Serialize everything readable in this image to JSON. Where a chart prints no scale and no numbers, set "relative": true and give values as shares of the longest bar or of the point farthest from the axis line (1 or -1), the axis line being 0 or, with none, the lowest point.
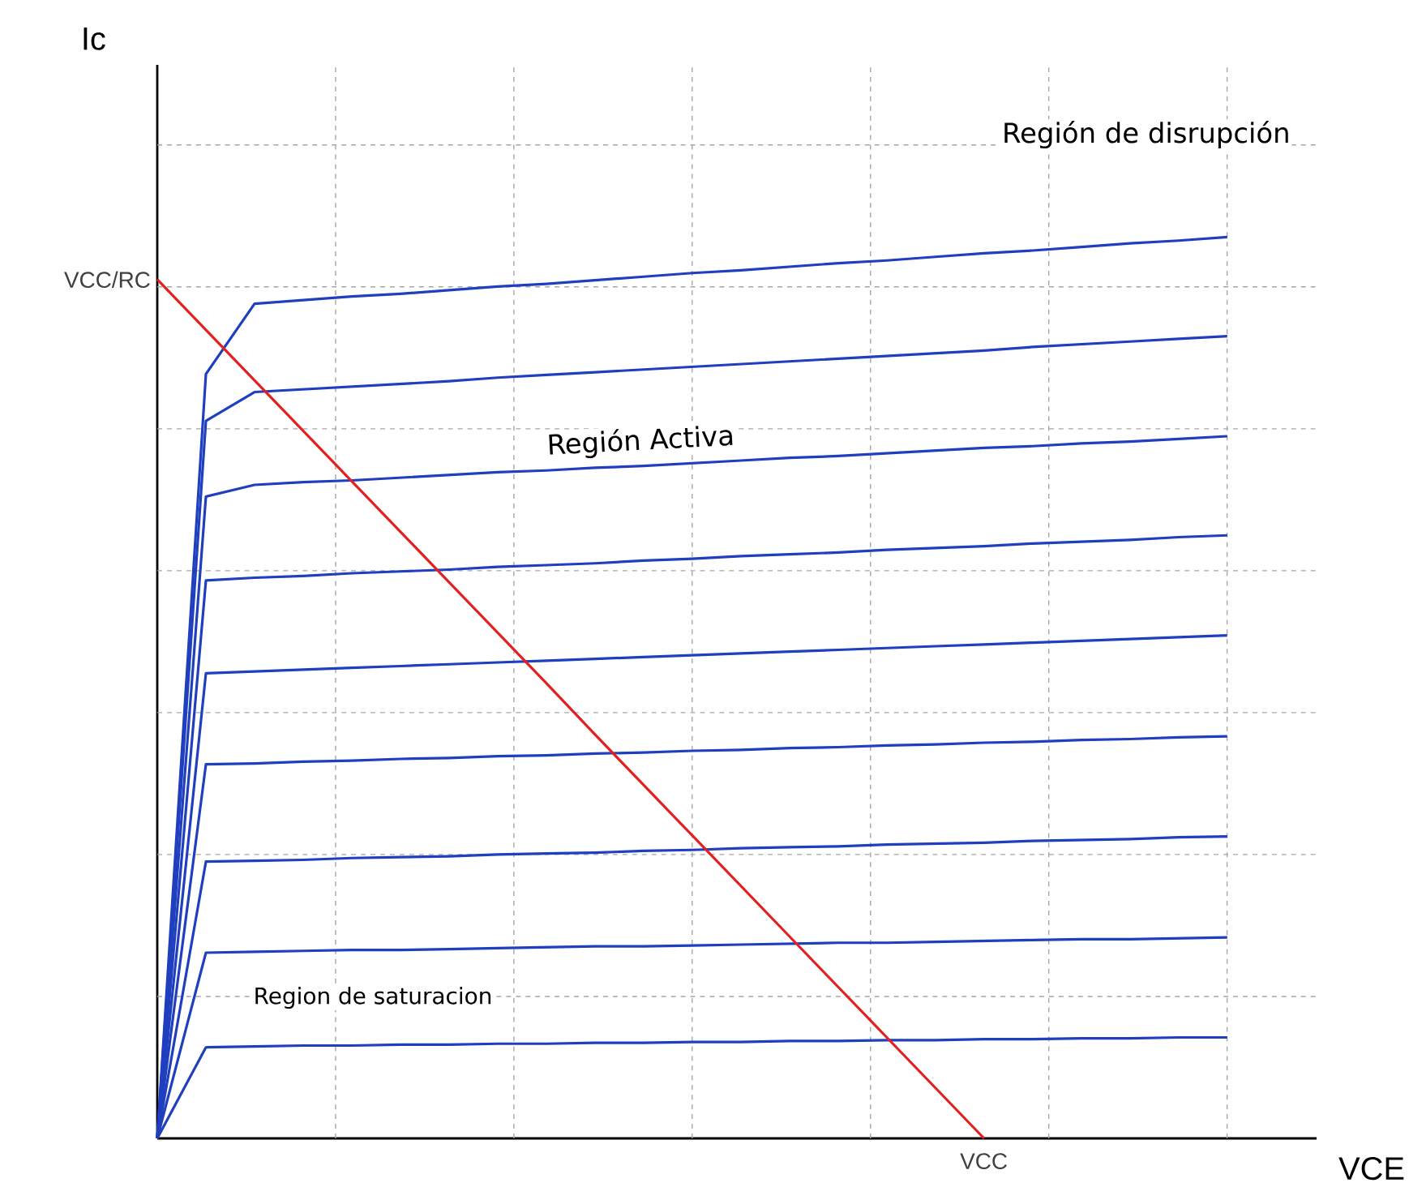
{
  "chart_data": {
    "type": "line",
    "relative": true,
    "xlabel": "VCE",
    "annotations": [
      "Región de disrupción",
      "Región Activa",
      "Region de saturacion",
      "VCC",
      "VCC/RC",
      "Ic"
    ],
    "grid": true,
    "line_style": "solid",
    "marker": "none",
    "categories": [
      null,
      null,
      null,
      null,
      null,
      null,
      null,
      null,
      null,
      null,
      null,
      null,
      null,
      null,
      null,
      null,
      null,
      null,
      null,
      null,
      null,
      null,
      null
    ],
    "series": [
      {
        "color": "#1f3fbf",
        "values": [
          0,
          0.848,
          0.926,
          0.93,
          0.934,
          0.937,
          0.941,
          0.945,
          0.948,
          0.952,
          0.956,
          0.96,
          0.963,
          0.967,
          0.971,
          0.974,
          0.978,
          0.982,
          0.985,
          0.989,
          0.993,
          0.996,
          1.0
        ]
      },
      {
        "color": "#1f3fbf",
        "values": [
          0,
          0.796,
          0.828,
          0.831,
          0.834,
          0.837,
          0.84,
          0.844,
          0.847,
          0.85,
          0.853,
          0.856,
          0.859,
          0.862,
          0.865,
          0.868,
          0.871,
          0.874,
          0.878,
          0.881,
          0.884,
          0.887,
          0.89
        ]
      },
      {
        "color": "#1f3fbf",
        "values": [
          0,
          0.712,
          0.725,
          0.728,
          0.73,
          0.733,
          0.736,
          0.739,
          0.741,
          0.744,
          0.746,
          0.749,
          0.752,
          0.755,
          0.757,
          0.76,
          0.763,
          0.766,
          0.768,
          0.771,
          0.773,
          0.776,
          0.779
        ]
      },
      {
        "color": "#1f3fbf",
        "values": [
          0,
          0.619,
          0.622,
          0.624,
          0.627,
          0.629,
          0.631,
          0.634,
          0.636,
          0.638,
          0.641,
          0.643,
          0.646,
          0.648,
          0.65,
          0.653,
          0.655,
          0.657,
          0.66,
          0.662,
          0.664,
          0.667,
          0.669
        ]
      },
      {
        "color": "#1f3fbf",
        "values": [
          0,
          0.516,
          0.518,
          0.52,
          0.522,
          0.524,
          0.526,
          0.528,
          0.53,
          0.532,
          0.534,
          0.536,
          0.538,
          0.54,
          0.542,
          0.544,
          0.546,
          0.548,
          0.55,
          0.552,
          0.554,
          0.556,
          0.558
        ]
      },
      {
        "color": "#1f3fbf",
        "values": [
          0,
          0.415,
          0.416,
          0.418,
          0.419,
          0.421,
          0.422,
          0.424,
          0.425,
          0.427,
          0.428,
          0.43,
          0.431,
          0.433,
          0.434,
          0.436,
          0.437,
          0.439,
          0.44,
          0.442,
          0.443,
          0.445,
          0.446
        ]
      },
      {
        "color": "#1f3fbf",
        "values": [
          0,
          0.307,
          0.308,
          0.309,
          0.311,
          0.312,
          0.313,
          0.315,
          0.316,
          0.317,
          0.319,
          0.32,
          0.322,
          0.323,
          0.324,
          0.326,
          0.327,
          0.328,
          0.33,
          0.331,
          0.332,
          0.334,
          0.335
        ]
      },
      {
        "color": "#1f3fbf",
        "values": [
          0,
          0.206,
          0.207,
          0.208,
          0.209,
          0.209,
          0.21,
          0.211,
          0.212,
          0.213,
          0.213,
          0.214,
          0.215,
          0.216,
          0.217,
          0.217,
          0.218,
          0.219,
          0.22,
          0.221,
          0.221,
          0.222,
          0.223
        ]
      },
      {
        "color": "#1f3fbf",
        "values": [
          0,
          0.101,
          0.102,
          0.103,
          0.103,
          0.104,
          0.104,
          0.105,
          0.105,
          0.106,
          0.106,
          0.107,
          0.107,
          0.108,
          0.108,
          0.109,
          0.109,
          0.11,
          0.11,
          0.111,
          0.111,
          0.112,
          0.112
        ]
      },
      {
        "color": "#e32020",
        "values": [
          0.953,
          0.897,
          0.841,
          0.785,
          0.729,
          0.673,
          0.617,
          0.561,
          0.505,
          0.448,
          0.392,
          0.336,
          0.28,
          0.224,
          0.168,
          0.112,
          0.056,
          0,
          null,
          null,
          null,
          null,
          null
        ]
      }
    ]
  }
}
